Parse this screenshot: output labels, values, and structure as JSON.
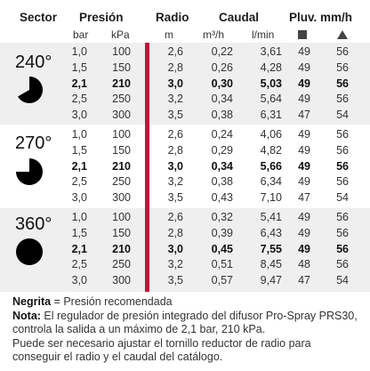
{
  "header": {
    "sector": "Sector",
    "presion": "Presión",
    "radio": "Radio",
    "caudal": "Caudal",
    "pluv": "Pluv. mm/h",
    "bar": "bar",
    "kpa": "kPa",
    "m": "m",
    "m3h": "m³/h",
    "lmin": "l/min",
    "square_icon": "square-icon",
    "triangle_icon": "triangle-icon"
  },
  "sectors": [
    {
      "label": "240°",
      "rows": [
        [
          "1,0",
          "100",
          "2,6",
          "0,22",
          "3,61",
          "49",
          "56"
        ],
        [
          "1,5",
          "150",
          "2,8",
          "0,26",
          "4,28",
          "49",
          "56"
        ],
        [
          "2,1",
          "210",
          "3,0",
          "0,30",
          "5,03",
          "49",
          "56"
        ],
        [
          "2,5",
          "250",
          "3,2",
          "0,34",
          "5,64",
          "49",
          "56"
        ],
        [
          "3,0",
          "300",
          "3,5",
          "0,38",
          "6,31",
          "47",
          "54"
        ]
      ]
    },
    {
      "label": "270°",
      "rows": [
        [
          "1,0",
          "100",
          "2,6",
          "0,24",
          "4,06",
          "49",
          "56"
        ],
        [
          "1,5",
          "150",
          "2,8",
          "0,29",
          "4,82",
          "49",
          "56"
        ],
        [
          "2,1",
          "210",
          "3,0",
          "0,34",
          "5,66",
          "49",
          "56"
        ],
        [
          "2,5",
          "250",
          "3,2",
          "0,38",
          "6,34",
          "49",
          "56"
        ],
        [
          "3,0",
          "300",
          "3,5",
          "0,43",
          "7,10",
          "47",
          "54"
        ]
      ]
    },
    {
      "label": "360°",
      "rows": [
        [
          "1,0",
          "100",
          "2,6",
          "0,32",
          "5,41",
          "49",
          "56"
        ],
        [
          "1,5",
          "150",
          "2,8",
          "0,39",
          "6,43",
          "49",
          "56"
        ],
        [
          "2,1",
          "210",
          "3,0",
          "0,45",
          "7,55",
          "49",
          "56"
        ],
        [
          "2,5",
          "250",
          "3,2",
          "0,51",
          "8,45",
          "48",
          "56"
        ],
        [
          "3,0",
          "300",
          "3,5",
          "0,57",
          "9,47",
          "47",
          "54"
        ]
      ]
    }
  ],
  "notes": {
    "bold_word": "Negrita",
    "line1_rest": " = Presión recomendada",
    "nota_label": "Nota:",
    "line2_rest": " El regulador de presión integrado del difusor Pro-Spray PRS30,",
    "line3": "controla la salida a un máximo de 2,1 bar, 210 kPa.",
    "line4": "Puede ser necesario ajustar el tornillo reductor de radio para",
    "line5": "conseguir el radio y el caudal del catálogo."
  },
  "colors": {
    "band": "#efefef",
    "accent_bar": "#c0143c"
  }
}
